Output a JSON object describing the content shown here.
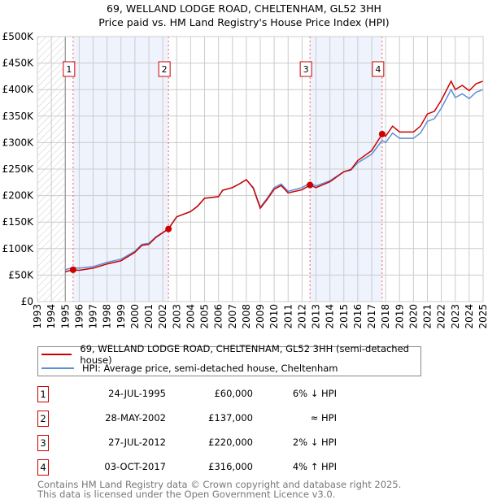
{
  "title": "69, WELLAND LODGE ROAD, CHELTENHAM, GL52 3HH",
  "subtitle": "Price paid vs. HM Land Registry's House Price Index (HPI)",
  "chart_data": {
    "type": "line",
    "title": "69, WELLAND LODGE ROAD, CHELTENHAM, GL52 3HH",
    "subtitle": "Price paid vs. HM Land Registry's House Price Index (HPI)",
    "xlim": [
      1993,
      2025
    ],
    "ylim": [
      0,
      500000
    ],
    "x_ticks": [
      "1993",
      "1994",
      "1995",
      "1996",
      "1997",
      "1998",
      "1999",
      "2000",
      "2001",
      "2002",
      "2003",
      "2004",
      "2005",
      "2006",
      "2007",
      "2008",
      "2009",
      "2010",
      "2011",
      "2012",
      "2013",
      "2014",
      "2015",
      "2016",
      "2017",
      "2018",
      "2019",
      "2020",
      "2021",
      "2022",
      "2023",
      "2024",
      "2025"
    ],
    "y_ticks": [
      {
        "v": 0,
        "label": "£0"
      },
      {
        "v": 50000,
        "label": "£50K"
      },
      {
        "v": 100000,
        "label": "£100K"
      },
      {
        "v": 150000,
        "label": "£150K"
      },
      {
        "v": 200000,
        "label": "£200K"
      },
      {
        "v": 250000,
        "label": "£250K"
      },
      {
        "v": 300000,
        "label": "£300K"
      },
      {
        "v": 350000,
        "label": "£350K"
      },
      {
        "v": 400000,
        "label": "£400K"
      },
      {
        "v": 450000,
        "label": "£450K"
      },
      {
        "v": 500000,
        "label": "£500K"
      }
    ],
    "grid": true,
    "hatched_until": 1995,
    "shaded_ranges": [
      [
        1995.56,
        2002.41
      ],
      [
        2012.57,
        2017.75
      ]
    ],
    "x": [
      1995,
      1995.5,
      1996,
      1997,
      1998,
      1999,
      2000,
      2000.5,
      2001,
      2001.5,
      2002.4,
      2003,
      2004,
      2004.5,
      2005,
      2006,
      2006.3,
      2007,
      2007.5,
      2008,
      2008.5,
      2009,
      2009.5,
      2010,
      2010.5,
      2011,
      2012,
      2012.57,
      2013,
      2014,
      2015,
      2015.5,
      2016,
      2017,
      2017.75,
      2018,
      2018.5,
      2019,
      2020,
      2020.5,
      2021,
      2021.5,
      2022,
      2022.7,
      2023,
      2023.5,
      2024,
      2024.5,
      2025
    ],
    "series": [
      {
        "name": "69, WELLAND LODGE ROAD, CHELTENHAM, GL52 3HH (semi-detached house)",
        "color": "#cc0000",
        "values": [
          56,
          60,
          59,
          63,
          71,
          77,
          93,
          106,
          108,
          121,
          137,
          160,
          170,
          180,
          195,
          198,
          210,
          215,
          222,
          230,
          214,
          176,
          193,
          212,
          219,
          205,
          211,
          220,
          215,
          226,
          245,
          249,
          266,
          285,
          316,
          312,
          331,
          320,
          320,
          331,
          354,
          359,
          380,
          416,
          400,
          408,
          398,
          411,
          416
        ]
      },
      {
        "name": "HPI: Average price, semi-detached house, Cheltenham",
        "color": "#5b8fd6",
        "values": [
          60,
          64,
          63,
          66,
          74,
          80,
          95,
          108,
          110,
          122,
          137,
          160,
          170,
          180,
          195,
          198,
          210,
          215,
          222,
          230,
          215,
          178,
          195,
          215,
          222,
          208,
          215,
          224,
          218,
          228,
          245,
          248,
          262,
          278,
          304,
          300,
          318,
          308,
          308,
          318,
          340,
          345,
          365,
          400,
          385,
          392,
          383,
          395,
          400
        ]
      }
    ],
    "value_unit": "thousand GBP",
    "sales": [
      {
        "n": "1",
        "x": 1995.56,
        "value": 60000,
        "date": "24-JUL-1995",
        "price": "£60,000",
        "hpi": "6% ↓ HPI"
      },
      {
        "n": "2",
        "x": 2002.41,
        "value": 137000,
        "date": "28-MAY-2002",
        "price": "£137,000",
        "hpi": "≈ HPI"
      },
      {
        "n": "3",
        "x": 2012.57,
        "value": 220000,
        "date": "27-JUL-2012",
        "price": "£220,000",
        "hpi": "2% ↓ HPI"
      },
      {
        "n": "4",
        "x": 2017.75,
        "value": 316000,
        "date": "03-OCT-2017",
        "price": "£316,000",
        "hpi": "4% ↑ HPI"
      }
    ],
    "legend_position": "bottom"
  },
  "footer": [
    "Contains HM Land Registry data © Crown copyright and database right 2025.",
    "This data is licensed under the Open Government Licence v3.0."
  ]
}
